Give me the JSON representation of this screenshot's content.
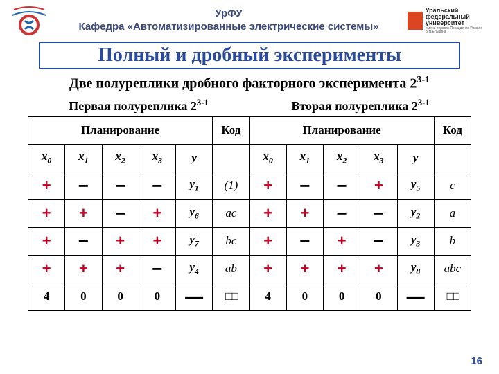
{
  "header": {
    "line1": "УрФУ",
    "line2": "Кафедра «Автоматизированные электрические системы»",
    "logoRight": {
      "l1": "Уральский",
      "l2": "федеральный",
      "l3": "университет",
      "sub": "имени первого Президента\nРоссии Б.Н.Ельцина"
    }
  },
  "title": "Полный и дробный эксперименты",
  "subtitle_pre": "Две полуреплики дробного факторного эксперимента 2",
  "subtitle_exp": "3-1",
  "halfrep_left_pre": "Первая полуреплика 2",
  "halfrep_right_pre": "Вторая полуреплика 2",
  "halfrep_exp": "3-1",
  "planning": "Планирование",
  "code": "Код",
  "cols": {
    "x0": "x",
    "x1": "x",
    "x2": "x",
    "x3": "x",
    "y": "y"
  },
  "leftRows": [
    {
      "x0": "+",
      "x1": "−",
      "x2": "−",
      "x3": "−",
      "y": "y",
      "ysub": "1",
      "code": "(1)"
    },
    {
      "x0": "+",
      "x1": "+",
      "x2": "−",
      "x3": "+",
      "y": "y",
      "ysub": "6",
      "code": "ac"
    },
    {
      "x0": "+",
      "x1": "−",
      "x2": "+",
      "x3": "+",
      "y": "y",
      "ysub": "7",
      "code": "bc"
    },
    {
      "x0": "+",
      "x1": "+",
      "x2": "+",
      "x3": "−",
      "y": "y",
      "ysub": "4",
      "code": "ab"
    }
  ],
  "rightRows": [
    {
      "x0": "+",
      "x1": "−",
      "x2": "−",
      "x3": "+",
      "y": "y",
      "ysub": "5",
      "code": "c"
    },
    {
      "x0": "+",
      "x1": "+",
      "x2": "−",
      "x3": "−",
      "y": "y",
      "ysub": "2",
      "code": "a"
    },
    {
      "x0": "+",
      "x1": "−",
      "x2": "+",
      "x3": "−",
      "y": "y",
      "ysub": "3",
      "code": "b"
    },
    {
      "x0": "+",
      "x1": "+",
      "x2": "+",
      "x3": "+",
      "y": "y",
      "ysub": "8",
      "code": "abc"
    }
  ],
  "sumRow": {
    "v0": "4",
    "v1": "0",
    "v2": "0",
    "v3": "0",
    "dash": "—",
    "box": "□□"
  },
  "pageNum": "16",
  "colors": {
    "accent": "#2a4a9a",
    "plus": "#c00020"
  }
}
